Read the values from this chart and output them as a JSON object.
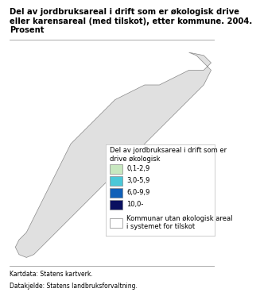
{
  "title": "Del av jordbruksareal i drift som er økologisk drive\neller karensareal (med tilskot), etter kommune. 2004.\nProsent",
  "legend_title": "Del av jordbruksareal i drift som er\ndrive økologisk",
  "legend_items": [
    {
      "label": "0,1-2,9",
      "color": "#c8e8c0"
    },
    {
      "label": "3,0-5,9",
      "color": "#4bc8d8"
    },
    {
      "label": "6,0-9,9",
      "color": "#1060b8"
    },
    {
      "label": "10,0-",
      "color": "#0a1060"
    },
    {
      "label": "Kommunar utan økologisk areal\ni systemet for tilskot",
      "color": "#ffffff"
    }
  ],
  "footer_line1": "Kartdata: Statens kartverk.",
  "footer_line2": "Datakjelde: Statens landbruksforvaltning.",
  "background_color": "#ffffff",
  "title_fontsize": 7.2,
  "legend_title_fontsize": 6.0,
  "legend_fontsize": 6.0,
  "footer_fontsize": 5.5
}
